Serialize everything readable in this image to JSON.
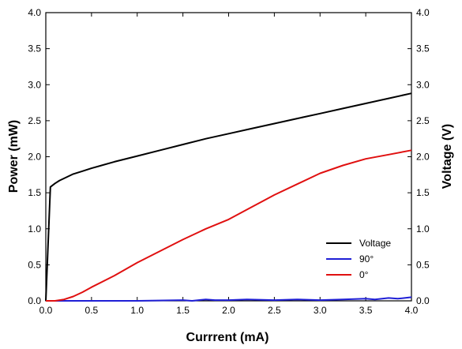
{
  "chart_data": {
    "type": "line",
    "xlabel": "Currrent (mA)",
    "ylabel_left": "Power (mW)",
    "ylabel_right": "Voltage (V)",
    "xlim": [
      0.0,
      4.0
    ],
    "ylim_left": [
      0.0,
      4.0
    ],
    "ylim_right": [
      0.0,
      4.0
    ],
    "x_ticks": [
      "0.0",
      "0.5",
      "1.0",
      "1.5",
      "2.0",
      "2.5",
      "3.0",
      "3.5",
      "4.0"
    ],
    "y_ticks_left": [
      "0.0",
      "0.5",
      "1.0",
      "1.5",
      "2.0",
      "2.5",
      "3.0",
      "3.5",
      "4.0"
    ],
    "y_ticks_right": [
      "0.0",
      "0.5",
      "1.0",
      "1.5",
      "2.0",
      "2.5",
      "3.0",
      "3.5",
      "4.0"
    ],
    "grid": false,
    "legend_position": "bottom-right",
    "series": [
      {
        "name": "Voltage",
        "color": "#000000",
        "axis": "right",
        "x": [
          0.0,
          0.05,
          0.1,
          0.15,
          0.2,
          0.3,
          0.4,
          0.5,
          0.75,
          1.0,
          1.25,
          1.5,
          1.75,
          2.0,
          2.25,
          2.5,
          2.75,
          3.0,
          3.25,
          3.5,
          3.75,
          4.0
        ],
        "y": [
          0.0,
          1.58,
          1.63,
          1.67,
          1.7,
          1.76,
          1.8,
          1.84,
          1.93,
          2.01,
          2.09,
          2.17,
          2.25,
          2.32,
          2.39,
          2.46,
          2.53,
          2.6,
          2.67,
          2.74,
          2.81,
          2.88
        ]
      },
      {
        "name": "90°",
        "color": "#1f1fd6",
        "axis": "left",
        "x": [
          0.0,
          0.5,
          1.0,
          1.5,
          1.6,
          1.75,
          1.85,
          2.0,
          2.2,
          2.5,
          2.75,
          3.0,
          3.25,
          3.5,
          3.6,
          3.75,
          3.85,
          4.0
        ],
        "y": [
          0.0,
          0.0,
          0.0,
          0.01,
          0.0,
          0.02,
          0.01,
          0.01,
          0.02,
          0.01,
          0.02,
          0.01,
          0.02,
          0.03,
          0.02,
          0.04,
          0.03,
          0.05
        ]
      },
      {
        "name": "0°",
        "color": "#e01010",
        "axis": "left",
        "x": [
          0.0,
          0.1,
          0.2,
          0.3,
          0.4,
          0.5,
          0.75,
          1.0,
          1.25,
          1.5,
          1.75,
          2.0,
          2.25,
          2.5,
          2.75,
          3.0,
          3.25,
          3.5,
          3.75,
          4.0
        ],
        "y": [
          0.0,
          0.0,
          0.02,
          0.06,
          0.12,
          0.19,
          0.35,
          0.53,
          0.69,
          0.85,
          1.0,
          1.13,
          1.3,
          1.47,
          1.62,
          1.77,
          1.88,
          1.97,
          2.03,
          2.09
        ]
      }
    ]
  }
}
